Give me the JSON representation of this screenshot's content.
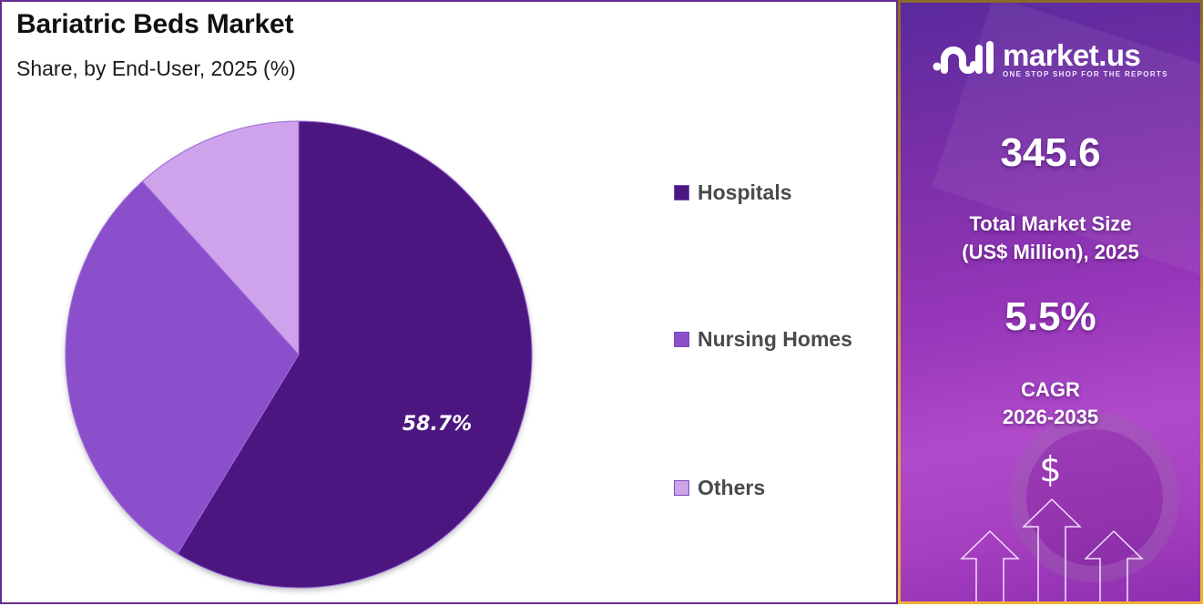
{
  "header": {
    "title": "Bariatric Beds Market",
    "subtitle": "Share, by End-User, 2025 (%)"
  },
  "legend": [
    {
      "label": "Hospitals",
      "color": "#4c1680"
    },
    {
      "label": "Nursing Homes",
      "color": "#8b4fcc"
    },
    {
      "label": "Others",
      "color": "#cfa3ec"
    }
  ],
  "chart_data": {
    "type": "pie",
    "title": "Bariatric Beds Market",
    "subtitle": "Share, by End-User, 2025 (%)",
    "categories": [
      "Hospitals",
      "Nursing Homes",
      "Others"
    ],
    "values": [
      58.7,
      29.6,
      11.7
    ],
    "data_labels": [
      "58.7%",
      "",
      ""
    ],
    "colors": [
      "#4c1680",
      "#8b4fcc",
      "#cfa3ec"
    ],
    "start_angle": "12 o'clock, clockwise",
    "legend_position": "right"
  },
  "side_panel": {
    "logo": {
      "name": "market.us",
      "tagline": "ONE STOP SHOP FOR THE REPORTS"
    },
    "market_size_value": "345.6",
    "market_size_label_line1": "Total Market Size",
    "market_size_label_line2": "(US$ Million), 2025",
    "cagr_value": "5.5%",
    "cagr_label_line1": "CAGR",
    "cagr_label_line2": "2026-2035",
    "currency_symbol": "$"
  }
}
